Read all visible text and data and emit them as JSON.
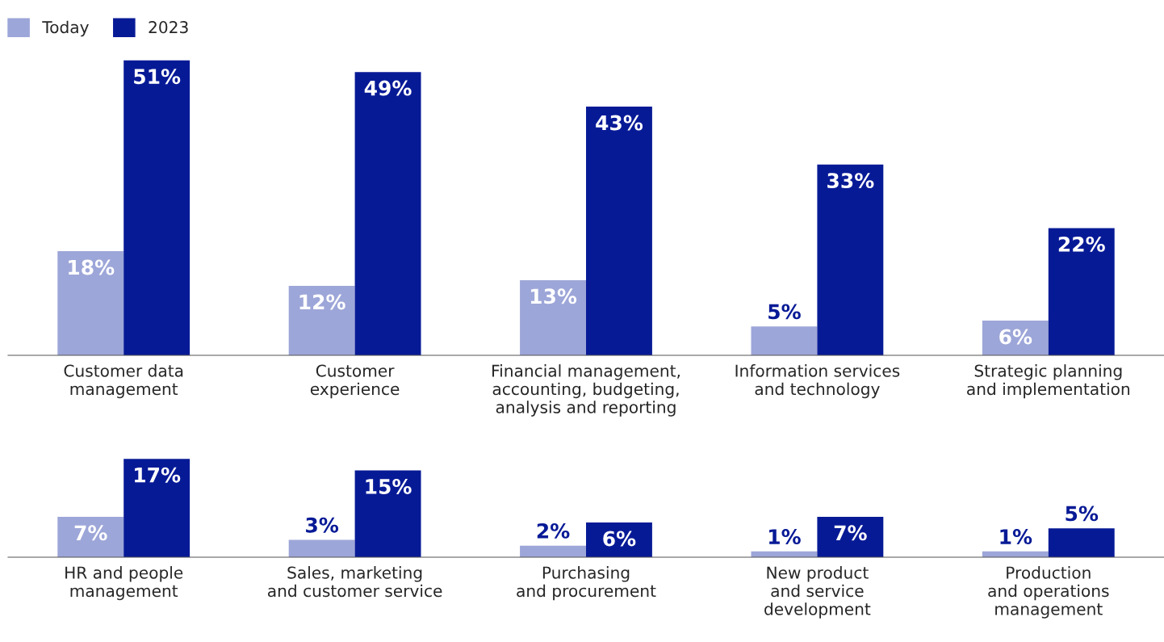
{
  "chart_data": [
    {
      "type": "bar",
      "categories": [
        "Customer data\nmanagement",
        "Customer\nexperience",
        "Financial management,\naccounting, budgeting,\nanalysis and reporting",
        "Information services\nand technology",
        "Strategic planning\nand implementation"
      ],
      "series": [
        {
          "name": "Today",
          "color": "#9da6d8",
          "values": [
            18,
            12,
            13,
            5,
            6
          ],
          "value_labels": [
            "18%",
            "12%",
            "13%",
            "5%",
            "6%"
          ]
        },
        {
          "name": "2023",
          "color": "#071a96",
          "values": [
            51,
            49,
            43,
            33,
            22
          ],
          "value_labels": [
            "51%",
            "49%",
            "43%",
            "33%",
            "22%"
          ]
        }
      ],
      "legend": "top left"
    },
    {
      "type": "bar",
      "categories": [
        "HR and people\nmanagement",
        "Sales, marketing\nand customer service",
        "Purchasing\nand procurement",
        "New product\nand service\ndevelopment",
        "Production\nand operations\nmanagement"
      ],
      "series": [
        {
          "color": "#9da6d8",
          "values": [
            7,
            3,
            2,
            1,
            1
          ],
          "value_labels": [
            "7%",
            "3%",
            "2%",
            "1%",
            "1%"
          ]
        },
        {
          "color": "#071a96",
          "values": [
            17,
            15,
            6,
            7,
            5
          ],
          "value_labels": [
            "17%",
            "15%",
            "6%",
            "7%",
            "5%"
          ]
        }
      ]
    }
  ]
}
